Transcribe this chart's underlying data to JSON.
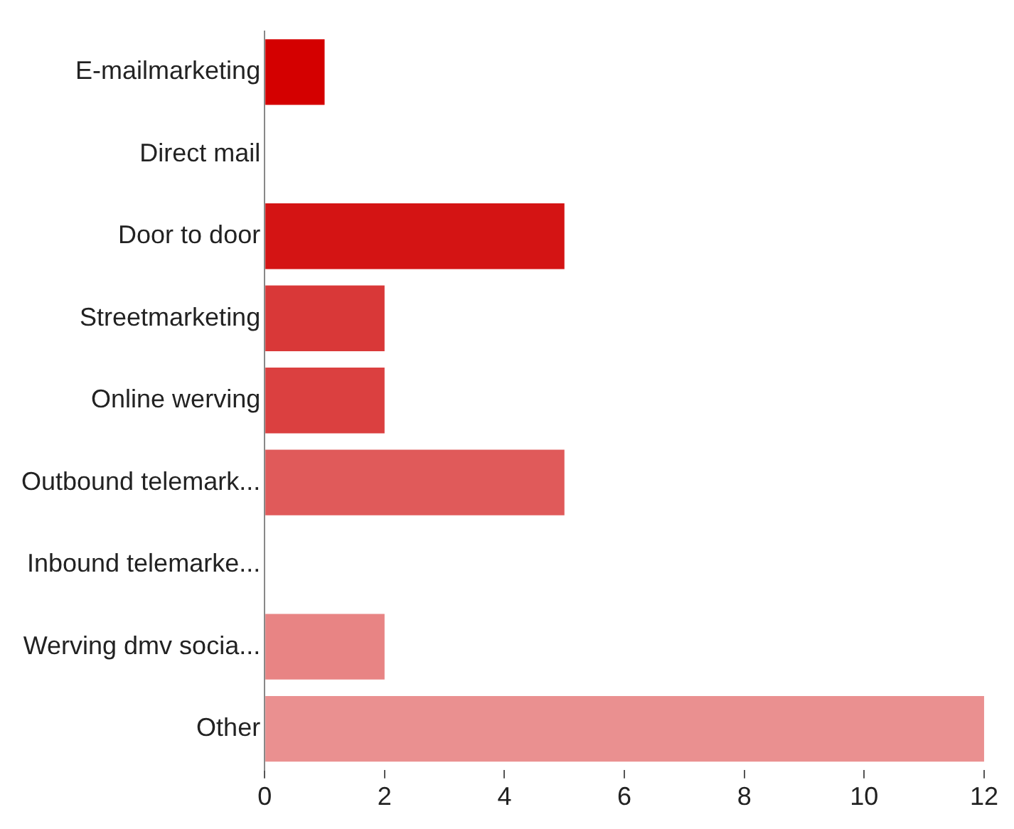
{
  "chart_data": {
    "type": "bar",
    "orientation": "horizontal",
    "categories": [
      "E-mailmarketing",
      "Direct mail",
      "Door to door",
      "Streetmarketing",
      "Online werving",
      "Outbound telemark...",
      "Inbound telemarke...",
      "Werving dmv socia...",
      "Other"
    ],
    "values": [
      1,
      0,
      5,
      2,
      2,
      5,
      0,
      2,
      12
    ],
    "colors": [
      "#d40000",
      "#d40000",
      "#d41414",
      "#d93838",
      "#db4040",
      "#e05a5a",
      "#e46c6c",
      "#e88484",
      "#ea9090"
    ],
    "xlim": [
      0,
      12
    ],
    "xticks": [
      0,
      2,
      4,
      6,
      8,
      10,
      12
    ],
    "grid": false,
    "legend": false
  }
}
